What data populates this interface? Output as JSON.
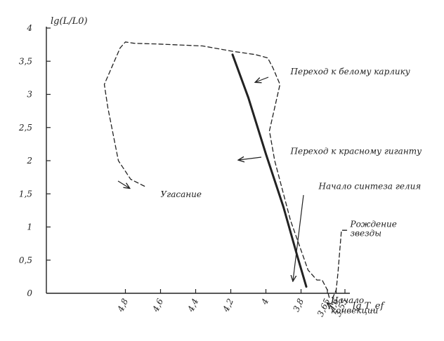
{
  "chart_data": {
    "type": "line",
    "title": "",
    "xlabel": "lg T_ef",
    "ylabel": "lg(L/L0)",
    "x_reversed": true,
    "xlim": [
      4.95,
      3.47
    ],
    "ylim": [
      0,
      4
    ],
    "x_ticks": [
      {
        "value": 4.8,
        "label": "4,8"
      },
      {
        "value": 4.6,
        "label": "4,6"
      },
      {
        "value": 4.4,
        "label": "4,4"
      },
      {
        "value": 4.2,
        "label": "4,2"
      },
      {
        "value": 4.0,
        "label": "4"
      },
      {
        "value": 3.8,
        "label": "3,8"
      },
      {
        "value": 3.65,
        "label": "3,65"
      },
      {
        "value": 3.6,
        "label": "3,6"
      },
      {
        "value": 3.55,
        "label": "3,55"
      }
    ],
    "y_ticks": [
      {
        "value": 4,
        "label": "4"
      },
      {
        "value": 3.5,
        "label": "3,5"
      },
      {
        "value": 3,
        "label": "3"
      },
      {
        "value": 2.5,
        "label": "2,5"
      },
      {
        "value": 2,
        "label": "2"
      },
      {
        "value": 1.5,
        "label": "1,5"
      },
      {
        "value": 1,
        "label": "1"
      },
      {
        "value": 0.5,
        "label": "0,5"
      },
      {
        "value": 0,
        "label": "0"
      }
    ],
    "grid": false,
    "series": [
      {
        "style": "solid",
        "color": "#222222",
        "points": [
          [
            4.19,
            3.6
          ],
          [
            4.1,
            2.95
          ],
          [
            4.0,
            2.1
          ],
          [
            3.9,
            1.3
          ],
          [
            3.82,
            0.55
          ],
          [
            3.77,
            0.1
          ]
        ]
      },
      {
        "style": "dashed",
        "color": "#222222",
        "points": [
          [
            3.54,
            0.95
          ],
          [
            3.57,
            0.95
          ],
          [
            3.59,
            0.3
          ],
          [
            3.6,
            0.05
          ],
          [
            3.62,
            -0.07
          ],
          [
            3.64,
            -0.06
          ],
          [
            3.65,
            0.05
          ],
          [
            3.68,
            0.2
          ],
          [
            3.71,
            0.2
          ],
          [
            3.76,
            0.35
          ],
          [
            3.86,
            1.1
          ],
          [
            3.95,
            2.0
          ],
          [
            3.98,
            2.45
          ],
          [
            3.92,
            3.15
          ],
          [
            3.96,
            3.4
          ],
          [
            3.99,
            3.55
          ],
          [
            4.06,
            3.6
          ],
          [
            4.19,
            3.65
          ],
          [
            4.36,
            3.73
          ],
          [
            4.62,
            3.76
          ],
          [
            4.75,
            3.77
          ],
          [
            4.8,
            3.79
          ],
          [
            4.83,
            3.7
          ],
          [
            4.92,
            3.15
          ],
          [
            4.9,
            2.8
          ],
          [
            4.84,
            2.0
          ],
          [
            4.77,
            1.72
          ],
          [
            4.68,
            1.6
          ]
        ]
      }
    ],
    "annotations": [
      {
        "text": "Переход к белому карлику",
        "x": 3.86,
        "y": 3.3
      },
      {
        "text": "Переход к красному гиганту",
        "x": 3.86,
        "y": 2.1
      },
      {
        "text": "Начало синтеза гелия",
        "x": 3.7,
        "y": 1.57
      },
      {
        "text": "Рождение",
        "x": 3.52,
        "y": 1.0
      },
      {
        "text": "звезды",
        "x": 3.52,
        "y": 0.86
      },
      {
        "text": "Угасание",
        "x": 4.6,
        "y": 1.45
      },
      {
        "text": "Начало",
        "x": 3.63,
        "y": -0.15
      },
      {
        "text": "конвекции",
        "x": 3.63,
        "y": -0.3
      }
    ]
  }
}
